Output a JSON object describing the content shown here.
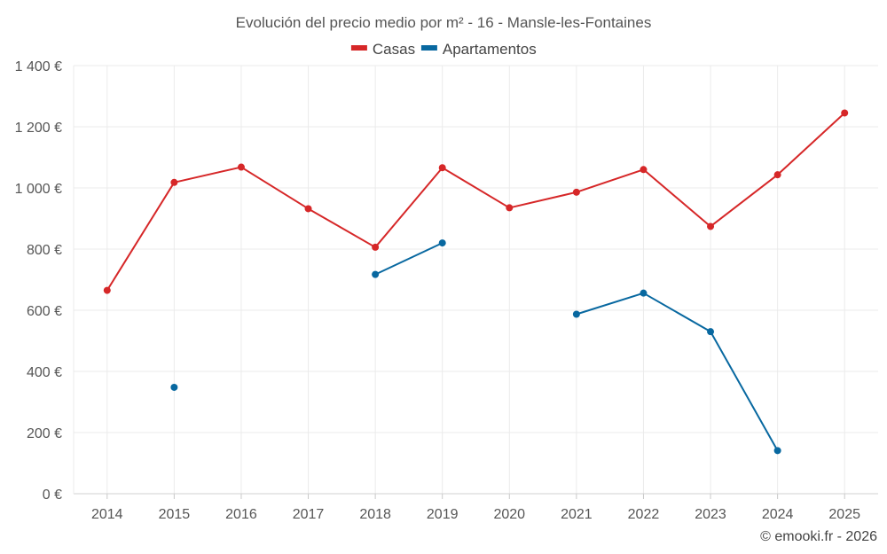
{
  "chart_data": {
    "type": "line",
    "title": "Evolución del precio medio por m² - 16 - Mansle-les-Fontaines",
    "xlabel": "",
    "ylabel": "",
    "x": [
      "2014",
      "2015",
      "2016",
      "2017",
      "2018",
      "2019",
      "2020",
      "2021",
      "2022",
      "2023",
      "2024",
      "2025"
    ],
    "ylim": [
      0,
      1400
    ],
    "yticks": [
      0,
      200,
      400,
      600,
      800,
      1000,
      1200,
      1400
    ],
    "ytick_labels": [
      "0 €",
      "200 €",
      "400 €",
      "600 €",
      "800 €",
      "1 000 €",
      "1 200 €",
      "1 400 €"
    ],
    "grid": true,
    "legend_position": "top-center",
    "series": [
      {
        "name": "Casas",
        "color": "#d62728",
        "values": [
          665,
          1018,
          1068,
          932,
          806,
          1066,
          935,
          986,
          1060,
          874,
          1043,
          1245
        ]
      },
      {
        "name": "Apartamentos",
        "color": "#0868a0",
        "values": [
          null,
          348,
          null,
          null,
          717,
          820,
          null,
          587,
          656,
          530,
          141,
          null
        ]
      }
    ]
  },
  "credit": "© emooki.fr - 2026"
}
